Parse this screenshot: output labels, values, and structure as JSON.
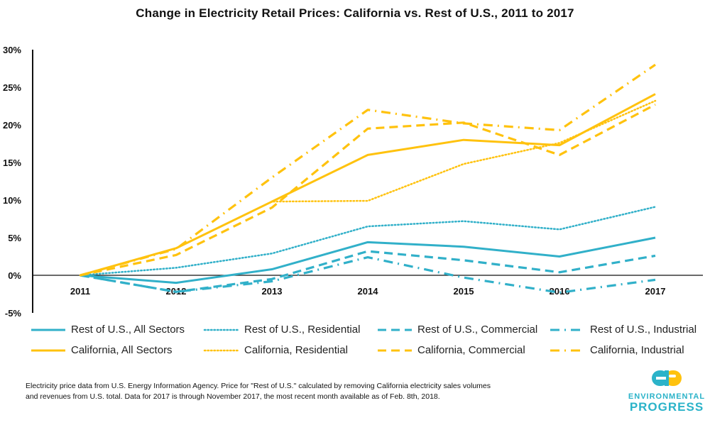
{
  "chart_data": {
    "type": "line",
    "title": "Change in Electricity Retail Prices: California vs. Rest of U.S., 2011 to 2017",
    "x": [
      "2011",
      "2012",
      "2013",
      "2014",
      "2015",
      "2016",
      "2017"
    ],
    "ylim": [
      -5,
      30
    ],
    "yticks": [
      "30%",
      "25%",
      "20%",
      "15%",
      "10%",
      "5%",
      "0%",
      "-5%"
    ],
    "ytick_values": [
      30,
      25,
      20,
      15,
      10,
      5,
      0,
      -5
    ],
    "grid": false,
    "legend_placement": "bottom",
    "series": [
      {
        "name": "Rest of U.S., All Sectors",
        "color": "#31B0C9",
        "style": "solid",
        "values": [
          0,
          -1.0,
          0.8,
          4.4,
          3.8,
          2.5,
          5.0
        ]
      },
      {
        "name": "Rest of U.S., Residential",
        "color": "#31B0C9",
        "style": "dotted",
        "values": [
          0,
          1.0,
          2.9,
          6.5,
          7.2,
          6.1,
          9.1
        ]
      },
      {
        "name": "Rest of U.S., Commercial",
        "color": "#31B0C9",
        "style": "dashed",
        "values": [
          0,
          -2.2,
          -0.5,
          3.2,
          2.0,
          0.4,
          2.6
        ]
      },
      {
        "name": "Rest of U.S., Industrial",
        "color": "#31B0C9",
        "style": "dashdot",
        "values": [
          0,
          -2.2,
          -0.8,
          2.4,
          -0.3,
          -2.3,
          -0.6
        ]
      },
      {
        "name": "California, All Sectors",
        "color": "#FFC20E",
        "style": "solid",
        "values": [
          0,
          3.6,
          9.8,
          16.0,
          18.0,
          17.3,
          24.1
        ]
      },
      {
        "name": "California, Residential",
        "color": "#FFC20E",
        "style": "dotted",
        "values": [
          0,
          3.6,
          9.8,
          9.9,
          14.8,
          17.6,
          23.2
        ]
      },
      {
        "name": "California, Commercial",
        "color": "#FFC20E",
        "style": "dashed",
        "values": [
          0,
          2.7,
          9.0,
          19.5,
          20.3,
          16.0,
          22.7
        ]
      },
      {
        "name": "California, Industrial",
        "color": "#FFC20E",
        "style": "dashdot",
        "values": [
          0,
          3.5,
          13.0,
          22.0,
          20.2,
          19.3,
          28.0
        ]
      }
    ]
  },
  "footnote": {
    "line1": "Electricity price data from U.S. Energy Information Agency. Price for \"Rest of U.S.\" calculated by removing California electricity sales volumes",
    "line2": "and revenues from U.S. total. Data for 2017 is through November 2017, the most recent month available as of Feb. 8th, 2018."
  },
  "logo": {
    "line1": "ENVIRONMENTAL",
    "line2": "PROGRESS"
  }
}
